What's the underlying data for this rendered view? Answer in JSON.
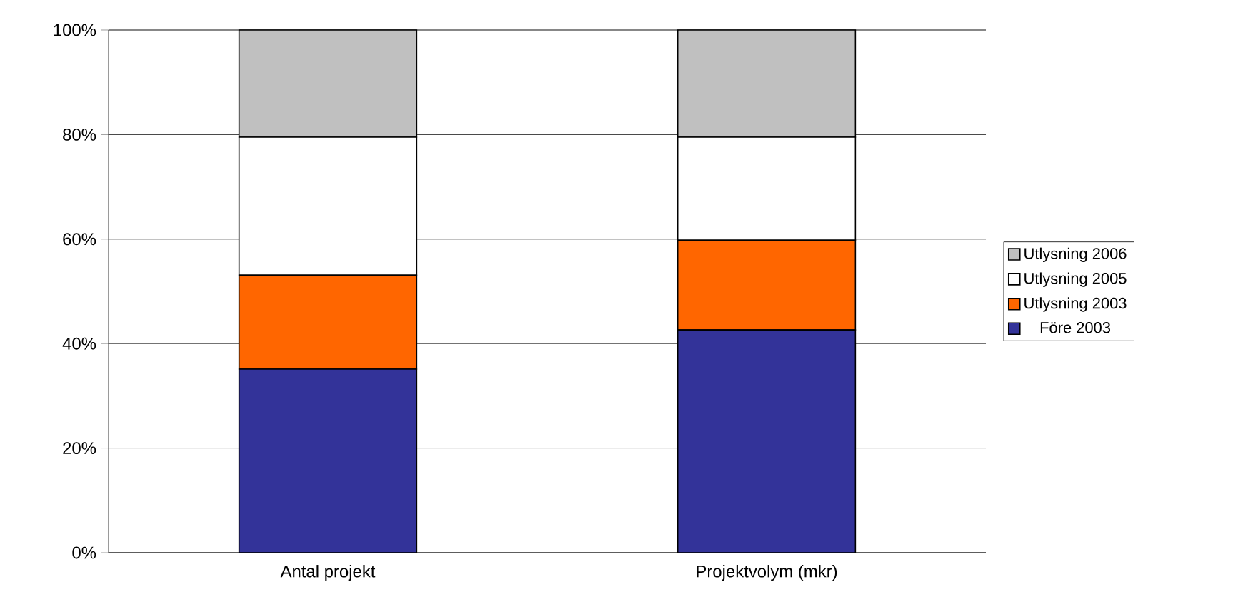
{
  "chart_data": {
    "type": "bar",
    "stacked": true,
    "categories": [
      "Antal projekt",
      "Projektvolym (mkr)"
    ],
    "series": [
      {
        "name": "Före 2003",
        "color": "#333399",
        "values": [
          35.1,
          42.6
        ]
      },
      {
        "name": "Utlysning 2003",
        "color": "#ff6600",
        "values": [
          18.0,
          17.2
        ]
      },
      {
        "name": "Utlysning 2005",
        "color": "#ffffff",
        "values": [
          26.4,
          19.7
        ]
      },
      {
        "name": "Utlysning 2006",
        "color": "#c0c0c0",
        "values": [
          20.5,
          20.5
        ]
      }
    ],
    "ylim": [
      0,
      100
    ],
    "yticks": [
      {
        "value": 0,
        "label": "0%"
      },
      {
        "value": 20,
        "label": "20%"
      },
      {
        "value": 40,
        "label": "40%"
      },
      {
        "value": 60,
        "label": "60%"
      },
      {
        "value": 80,
        "label": "80%"
      },
      {
        "value": 100,
        "label": "100%"
      }
    ],
    "grid": "y",
    "legend": "right"
  }
}
